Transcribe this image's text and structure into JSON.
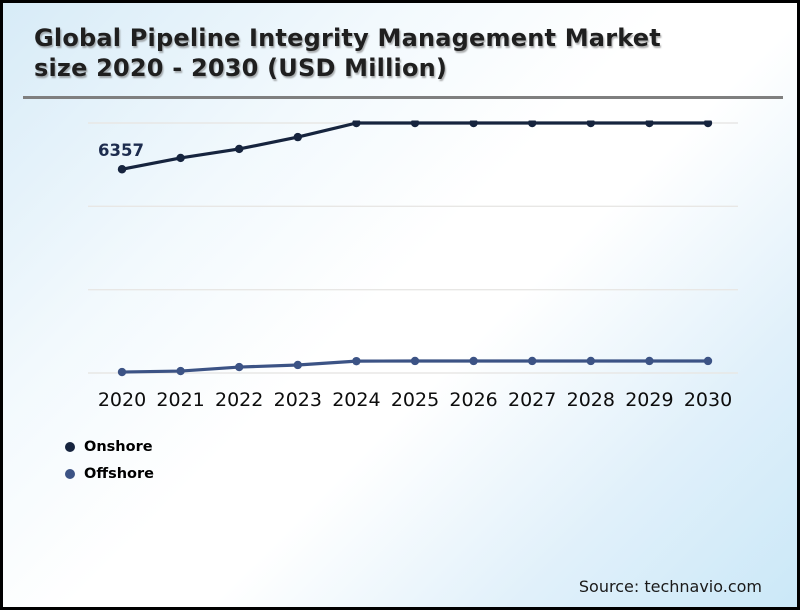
{
  "header": {
    "title": "Global Pipeline Integrity Management Market size 2020 - 2030 (USD Million)"
  },
  "chart_data": {
    "type": "line",
    "title": "Global Pipeline Integrity Management Market size 2020 - 2030 (USD Million)",
    "categories": [
      "2020",
      "2021",
      "2022",
      "2023",
      "2024",
      "2025",
      "2026",
      "2027",
      "2028",
      "2029",
      "2030"
    ],
    "series": [
      {
        "name": "Onshore",
        "color": "#16243e",
        "values": [
          6357,
          6710,
          6990,
          7360,
          7800,
          7800,
          7800,
          7800,
          7800,
          7800,
          7800
        ]
      },
      {
        "name": "Offshore",
        "color": "#3c5385",
        "values": [
          30,
          60,
          185,
          250,
          370,
          375,
          375,
          375,
          375,
          375,
          375
        ]
      }
    ],
    "annotations": [
      {
        "text": "6357",
        "series": "Onshore",
        "x": "2020"
      }
    ],
    "xlabel": "",
    "ylabel": "",
    "ylim": [
      0,
      7800
    ],
    "gridline_values": [
      0,
      2600,
      5200,
      7800
    ],
    "grid": "horizontal-only",
    "gridline_color": "#e8e7e5",
    "legend_position": "bottom-left",
    "y_axis_labels_visible": false,
    "series_clipped_at_plot_top": true
  },
  "source": {
    "text": "Source: technavio.com"
  }
}
